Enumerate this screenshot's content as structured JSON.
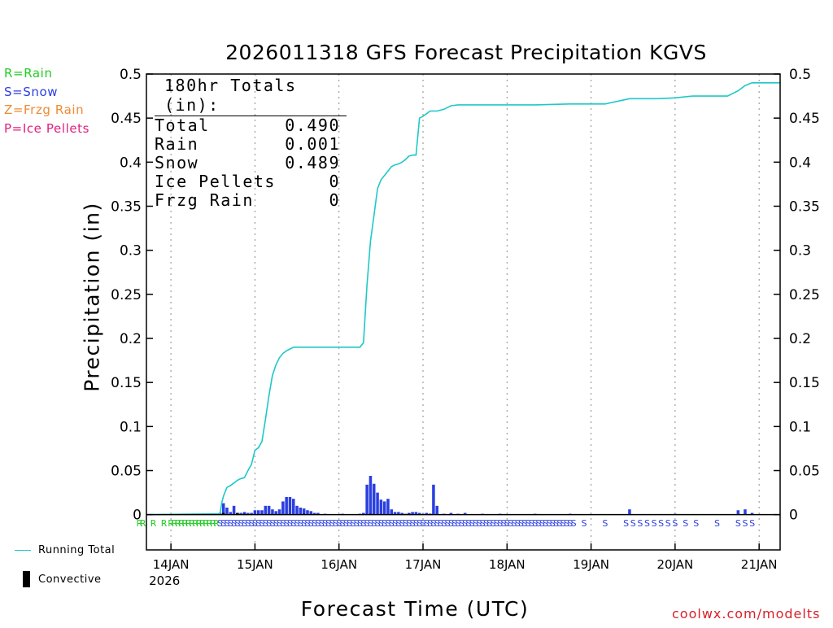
{
  "colors": {
    "rain": "#22cc22",
    "snow": "#2b3fe0",
    "frzg_rain": "#f08a30",
    "ice_pellets": "#e0207e",
    "running_total": "#1ec8c8",
    "convective": "#000000",
    "credit": "#d8202a"
  },
  "legend_keys": [
    {
      "label": "R=Rain",
      "color": "#22cc22"
    },
    {
      "label": "S=Snow",
      "color": "#2b3fe0"
    },
    {
      "label": "Z=Frzg Rain",
      "color": "#f08a30"
    },
    {
      "label": "P=Ice Pellets",
      "color": "#e0207e"
    }
  ],
  "totals": {
    "header": "180hr Totals (in):",
    "rows": [
      {
        "label": "Total",
        "value": "0.490"
      },
      {
        "label": "Rain",
        "value": "0.001"
      },
      {
        "label": "Snow",
        "value": "0.489"
      },
      {
        "label": "Ice Pellets",
        "value": "0"
      },
      {
        "label": "Frzg Rain",
        "value": "0"
      }
    ]
  },
  "bottom_legend": {
    "running_total": "Running Total",
    "convective": "Convective"
  },
  "credit": "coolwx.com/modelts",
  "chart_data": {
    "type": "bar",
    "title": "2026011318 GFS Forecast Precipitation KGVS",
    "xlabel": "Forecast Time (UTC)",
    "ylabel": "Precipitation (in)",
    "xlim_hours": [
      -1,
      180
    ],
    "ylim": [
      -0.04,
      0.5
    ],
    "grid": true,
    "y_ticks": [
      {
        "value": 0,
        "label": "0"
      },
      {
        "value": 0.05,
        "label": "0.05"
      },
      {
        "value": 0.1,
        "label": "0.1"
      },
      {
        "value": 0.15,
        "label": "0.15"
      },
      {
        "value": 0.2,
        "label": "0.2"
      },
      {
        "value": 0.25,
        "label": "0.25"
      },
      {
        "value": 0.3,
        "label": "0.3"
      },
      {
        "value": 0.35,
        "label": "0.35"
      },
      {
        "value": 0.4,
        "label": "0.4"
      },
      {
        "value": 0.45,
        "label": "0.45"
      },
      {
        "value": 0.5,
        "label": "0.5"
      }
    ],
    "x_ticks": [
      {
        "hour": 6,
        "label": "14JAN",
        "sublabel": "2026"
      },
      {
        "hour": 30,
        "label": "15JAN"
      },
      {
        "hour": 54,
        "label": "16JAN"
      },
      {
        "hour": 78,
        "label": "17JAN"
      },
      {
        "hour": 102,
        "label": "18JAN"
      },
      {
        "hour": 126,
        "label": "19JAN"
      },
      {
        "hour": 150,
        "label": "20JAN"
      },
      {
        "hour": 174,
        "label": "21JAN"
      }
    ],
    "hourly_precip": {
      "name": "Precipitation (in)",
      "hours": [
        20,
        21,
        22,
        23,
        24,
        25,
        26,
        27,
        28,
        29,
        30,
        31,
        32,
        33,
        34,
        35,
        36,
        37,
        38,
        39,
        40,
        41,
        42,
        43,
        44,
        45,
        46,
        47,
        48,
        50,
        55,
        60,
        61,
        62,
        63,
        64,
        65,
        66,
        67,
        68,
        69,
        70,
        71,
        72,
        73,
        74,
        75,
        76,
        77,
        78,
        79,
        80,
        81,
        82,
        84,
        86,
        88,
        90,
        95,
        100,
        110,
        120,
        137,
        150,
        168,
        170,
        172
      ],
      "values": [
        0.002,
        0.013,
        0.008,
        0.003,
        0.01,
        0.002,
        0.002,
        0.003,
        0.002,
        0.002,
        0.005,
        0.005,
        0.005,
        0.01,
        0.01,
        0.006,
        0.004,
        0.006,
        0.015,
        0.02,
        0.02,
        0.018,
        0.01,
        0.008,
        0.007,
        0.005,
        0.004,
        0.002,
        0.002,
        0.001,
        0.001,
        0.001,
        0.002,
        0.034,
        0.044,
        0.035,
        0.025,
        0.017,
        0.015,
        0.018,
        0.006,
        0.003,
        0.003,
        0.002,
        0.001,
        0.002,
        0.003,
        0.003,
        0.002,
        0.001,
        0.002,
        0.001,
        0.034,
        0.01,
        0.001,
        0.002,
        0.001,
        0.002,
        0.001,
        0.001,
        0.001,
        0.001,
        0.006,
        0.001,
        0.005,
        0.006,
        0.002
      ]
    },
    "convective": {
      "name": "Convective",
      "hours": [
        21,
        25,
        27,
        44,
        63,
        74,
        80
      ],
      "values": [
        0.002,
        0.002,
        0.001,
        0.001,
        0.001,
        0.001,
        0.001
      ]
    },
    "running_total": {
      "name": "Running Total",
      "hours": [
        -1,
        20,
        20.5,
        21,
        22,
        23,
        24,
        25,
        26,
        27,
        28,
        29,
        30,
        31,
        32,
        33,
        34,
        35,
        36,
        37,
        38,
        39,
        40,
        41,
        42,
        43,
        44,
        45,
        46,
        47,
        48,
        50,
        55,
        60,
        61,
        62,
        63,
        64,
        65,
        66,
        67,
        68,
        69,
        70,
        71,
        72,
        73,
        74,
        75,
        76,
        77,
        78,
        79,
        80,
        81,
        82,
        84,
        86,
        88,
        90,
        95,
        100,
        110,
        120,
        130,
        137,
        140,
        145,
        150,
        155,
        160,
        165,
        168,
        170,
        172,
        180
      ],
      "values": [
        0,
        0.001,
        0.013,
        0.021,
        0.031,
        0.033,
        0.036,
        0.039,
        0.041,
        0.042,
        0.05,
        0.057,
        0.073,
        0.076,
        0.083,
        0.108,
        0.135,
        0.158,
        0.17,
        0.178,
        0.183,
        0.186,
        0.188,
        0.19,
        0.19,
        0.19,
        0.19,
        0.19,
        0.19,
        0.19,
        0.19,
        0.19,
        0.19,
        0.19,
        0.195,
        0.26,
        0.31,
        0.34,
        0.37,
        0.38,
        0.385,
        0.39,
        0.395,
        0.397,
        0.398,
        0.4,
        0.403,
        0.407,
        0.408,
        0.408,
        0.45,
        0.452,
        0.455,
        0.458,
        0.458,
        0.458,
        0.46,
        0.464,
        0.465,
        0.465,
        0.465,
        0.465,
        0.465,
        0.466,
        0.466,
        0.472,
        0.472,
        0.472,
        0.473,
        0.475,
        0.475,
        0.475,
        0.481,
        0.487,
        0.49,
        0.49
      ]
    },
    "ptype_markers": [
      {
        "hours": [
          -3,
          -2,
          1,
          4,
          6,
          7,
          8,
          9,
          10,
          11,
          12,
          13,
          14,
          15,
          16,
          17,
          18,
          19
        ],
        "symbol": "R",
        "color": "#22cc22"
      },
      {
        "hours": [
          20,
          21,
          22,
          23,
          24,
          25,
          26,
          27,
          28,
          29,
          30,
          31,
          32,
          33,
          34,
          35,
          36,
          37,
          38,
          39,
          40,
          41,
          42,
          43,
          44,
          45,
          46,
          47,
          48,
          49,
          50,
          51,
          52,
          53,
          54,
          55,
          56,
          57,
          58,
          59,
          60,
          61,
          62,
          63,
          64,
          65,
          66,
          67,
          68,
          69,
          70,
          71,
          72,
          73,
          74,
          75,
          76,
          77,
          78,
          79,
          80,
          81,
          82,
          83,
          84,
          85,
          86,
          87,
          88,
          89,
          90,
          91,
          92,
          93,
          94,
          95,
          96,
          97,
          98,
          99,
          100,
          101,
          102,
          103,
          104,
          105,
          106,
          107,
          108,
          109,
          110,
          111,
          112,
          113,
          114,
          115,
          116,
          117,
          118,
          119,
          120,
          121,
          124,
          130,
          136,
          138,
          140,
          142,
          144,
          146,
          148,
          150,
          153,
          156,
          162,
          168,
          170,
          172
        ],
        "symbol": "S",
        "color": "#2b3fe0"
      }
    ]
  }
}
